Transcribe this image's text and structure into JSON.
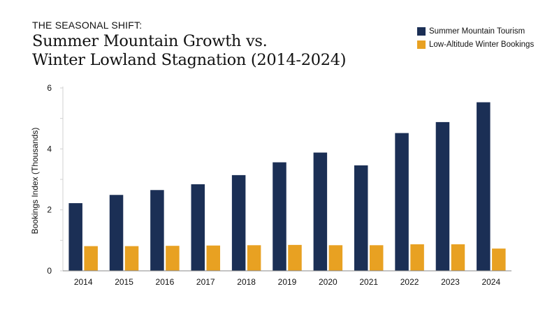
{
  "chart_data": {
    "type": "bar",
    "kicker": "THE SEASONAL SHIFT:",
    "title_lines": [
      "Summer Mountain Growth vs.",
      "Winter Lowland Stagnation (2014-2024)"
    ],
    "ylabel": "Bookings Index (Thousands)",
    "xlabel": "",
    "ylim": [
      0,
      6
    ],
    "y_ticks": [
      0,
      2,
      4,
      6
    ],
    "grid": false,
    "legend_position": "top-right",
    "categories": [
      "2014",
      "2015",
      "2016",
      "2017",
      "2018",
      "2019",
      "2020",
      "2021",
      "2022",
      "2023",
      "2024"
    ],
    "series": [
      {
        "name": "Summer Mountain Tourism",
        "color": "#1b2f55",
        "values": [
          2.22,
          2.49,
          2.65,
          2.84,
          3.14,
          3.56,
          3.88,
          3.46,
          4.52,
          4.88,
          5.53
        ]
      },
      {
        "name": "Low-Altitude Winter Bookings",
        "color": "#e8a122",
        "values": [
          0.81,
          0.81,
          0.82,
          0.83,
          0.84,
          0.85,
          0.84,
          0.84,
          0.87,
          0.87,
          0.73
        ]
      }
    ]
  }
}
